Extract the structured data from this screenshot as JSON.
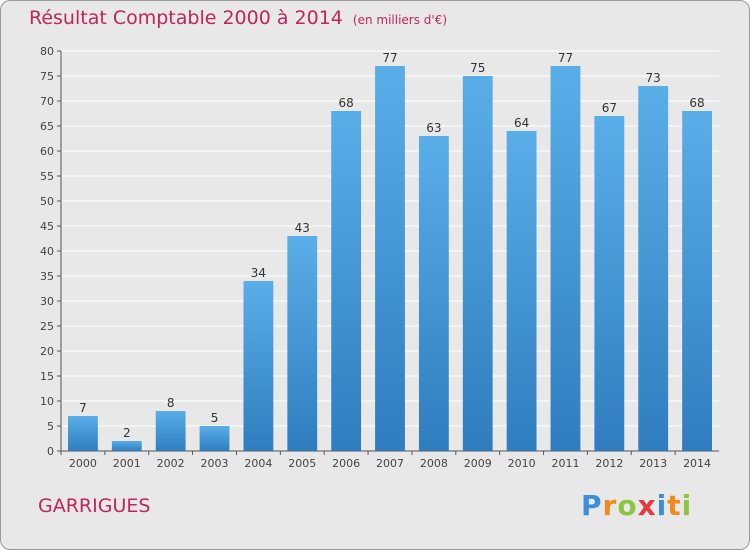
{
  "title": "Résultat Comptable 2000 à 2014",
  "subtitle": "(en milliers d'€)",
  "town": "GARRIGUES",
  "logo": {
    "text": "Proxiti",
    "letters": [
      {
        "ch": "P",
        "color": "#3a8fd8"
      },
      {
        "ch": "r",
        "color": "#f08a1c"
      },
      {
        "ch": "o",
        "color": "#8cc63f"
      },
      {
        "ch": "x",
        "color": "#e63a3a"
      },
      {
        "ch": "i",
        "color": "#3a8fd8"
      },
      {
        "ch": "t",
        "color": "#f08a1c"
      },
      {
        "ch": "i",
        "color": "#8cc63f"
      }
    ]
  },
  "colors": {
    "bar_top": "#5aaee8",
    "bar_bottom": "#2f7dbf",
    "title": "#c0255b",
    "grid": "#ffffff"
  },
  "chart_data": {
    "type": "bar",
    "categories": [
      "2000",
      "2001",
      "2002",
      "2003",
      "2004",
      "2005",
      "2006",
      "2007",
      "2008",
      "2009",
      "2010",
      "2011",
      "2012",
      "2013",
      "2014"
    ],
    "values": [
      7,
      2,
      8,
      5,
      34,
      43,
      68,
      77,
      63,
      75,
      64,
      77,
      67,
      73,
      68
    ],
    "ylim": [
      0,
      80
    ],
    "yticks": [
      0,
      5,
      10,
      15,
      20,
      25,
      30,
      35,
      40,
      45,
      50,
      55,
      60,
      65,
      70,
      75,
      80
    ],
    "grid": true
  }
}
